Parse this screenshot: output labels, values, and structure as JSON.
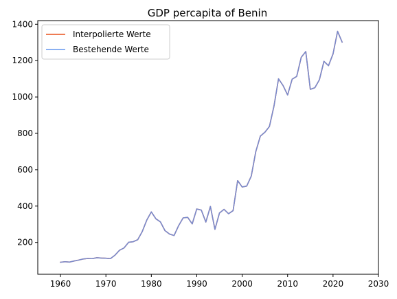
{
  "chart_data": {
    "type": "line",
    "title": "GDP percapita of Benin",
    "xlabel": "",
    "ylabel": "",
    "xlim": [
      1955,
      2030
    ],
    "ylim": [
      25,
      1420
    ],
    "xticks": [
      1960,
      1970,
      1980,
      1990,
      2000,
      2010,
      2020,
      2030
    ],
    "yticks": [
      200,
      400,
      600,
      800,
      1000,
      1200,
      1400
    ],
    "grid": false,
    "legend_position": "top-left",
    "series": [
      {
        "name": "Interpolierte Werte",
        "color": "#e8501b",
        "x": [
          1960,
          1961,
          1962,
          1963,
          1964,
          1965,
          1966,
          1967,
          1968,
          1969,
          1970,
          1971,
          1972,
          1973,
          1974,
          1975,
          1976,
          1977,
          1978,
          1979,
          1980,
          1981,
          1982,
          1983,
          1984,
          1985,
          1986,
          1987,
          1988,
          1989,
          1990,
          1991,
          1992,
          1993,
          1994,
          1995,
          1996,
          1997,
          1998,
          1999,
          2000,
          2001,
          2002,
          2003,
          2004,
          2005,
          2006,
          2007,
          2008,
          2009,
          2010,
          2011,
          2012,
          2013,
          2014,
          2015,
          2016,
          2017,
          2018,
          2019,
          2020,
          2021,
          2022
        ],
        "y": [
          91,
          94,
          92,
          98,
          103,
          109,
          112,
          111,
          116,
          114,
          113,
          111,
          130,
          157,
          170,
          201,
          204,
          215,
          260,
          323,
          368,
          330,
          313,
          265,
          246,
          238,
          292,
          335,
          338,
          302,
          384,
          378,
          312,
          398,
          272,
          362,
          382,
          358,
          375,
          540,
          505,
          510,
          565,
          700,
          785,
          806,
          838,
          950,
          1100,
          1063,
          1011,
          1098,
          1113,
          1218,
          1250,
          1042,
          1051,
          1095,
          1196,
          1172,
          1237,
          1361,
          1302
        ]
      },
      {
        "name": "Bestehende Werte",
        "color": "#6495ed",
        "x": [
          1960,
          1961,
          1962,
          1963,
          1964,
          1965,
          1966,
          1967,
          1968,
          1969,
          1970,
          1971,
          1972,
          1973,
          1974,
          1975,
          1976,
          1977,
          1978,
          1979,
          1980,
          1981,
          1982,
          1983,
          1984,
          1985,
          1986,
          1987,
          1988,
          1989,
          1990,
          1991,
          1992,
          1993,
          1994,
          1995,
          1996,
          1997,
          1998,
          1999,
          2000,
          2001,
          2002,
          2003,
          2004,
          2005,
          2006,
          2007,
          2008,
          2009,
          2010,
          2011,
          2012,
          2013,
          2014,
          2015,
          2016,
          2017,
          2018,
          2019,
          2020,
          2021,
          2022
        ],
        "y": [
          91,
          94,
          92,
          98,
          103,
          109,
          112,
          111,
          116,
          114,
          113,
          111,
          130,
          157,
          170,
          201,
          204,
          215,
          260,
          323,
          368,
          330,
          313,
          265,
          246,
          238,
          292,
          335,
          338,
          302,
          384,
          378,
          312,
          398,
          272,
          362,
          382,
          358,
          375,
          540,
          505,
          510,
          565,
          700,
          785,
          806,
          838,
          950,
          1100,
          1063,
          1011,
          1098,
          1113,
          1218,
          1250,
          1042,
          1051,
          1095,
          1196,
          1172,
          1237,
          1361,
          1302
        ]
      }
    ]
  }
}
